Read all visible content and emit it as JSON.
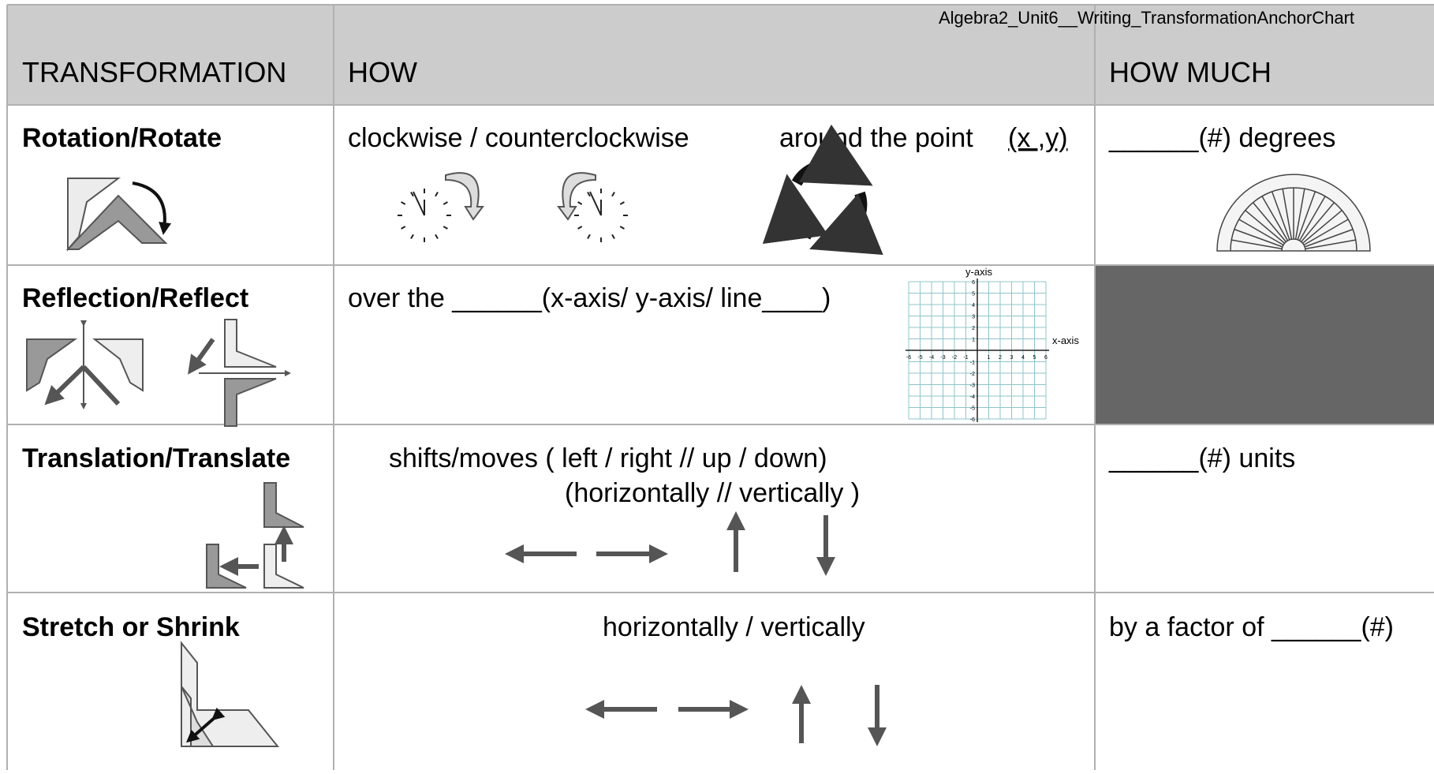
{
  "header": {
    "title": "Algebra2_Unit6__Writing_TransformationAnchorChart"
  },
  "table": {
    "columns": [
      "TRANSFORMATION",
      "HOW",
      "HOW MUCH"
    ],
    "rows": [
      {
        "name": "Rotation/Rotate",
        "how": [
          "clockwise / counterclockwise",
          "around the point",
          "(x ,y)"
        ],
        "how_much": "______(#) degrees"
      },
      {
        "name": "Reflection/Reflect",
        "how": [
          "over the ______(x-axis/ y-axis/ line____)"
        ]
      },
      {
        "name": "Translation/Translate",
        "how": [
          "shifts/moves  ( left  /  right    //  up / down)",
          "(horizontally   //    vertically )"
        ],
        "how_much": "______(#) units"
      },
      {
        "name": "Stretch or Shrink",
        "how": [
          "horizontally  /  vertically"
        ],
        "how_much": "by a factor of ______(#)"
      }
    ]
  },
  "graph": {
    "y_label": "y-axis",
    "x_label": "x-axis",
    "x_ticks": [
      -6,
      -5,
      -4,
      -3,
      -2,
      -1,
      1,
      2,
      3,
      4,
      5,
      6
    ],
    "y_ticks": [
      6,
      5,
      4,
      3,
      2,
      1,
      -1,
      -2,
      -3,
      -4,
      -5,
      -6
    ]
  }
}
